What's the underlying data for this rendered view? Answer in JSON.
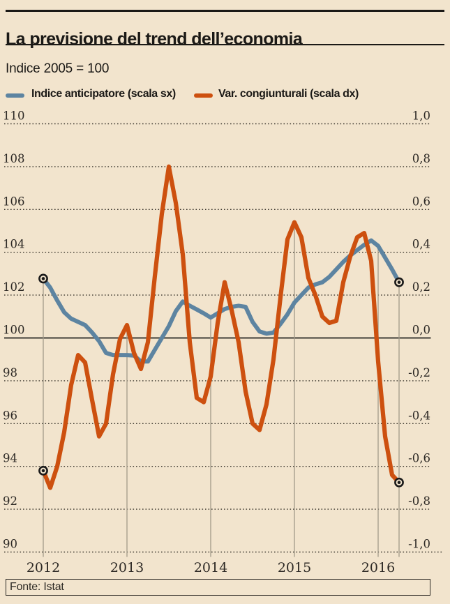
{
  "header": {
    "title": "La previsione del trend dell’economia",
    "subtitle": "Indice 2005 = 100"
  },
  "legend": [
    {
      "label": "Indice anticipatore (scala sx)",
      "color": "#5d84a1"
    },
    {
      "label": "Var. congiunturali (scala dx)",
      "color": "#cd500f"
    }
  ],
  "source": {
    "label": "Fonte: Istat"
  },
  "chart_data": {
    "type": "line",
    "title": "La previsione del trend dell’economia",
    "subtitle": "Indice 2005 = 100",
    "x_unit": "month",
    "x_start": "2012-01",
    "x_end": "2016-04",
    "x_tick_labels": [
      "2012",
      "2013",
      "2014",
      "2015",
      "2016"
    ],
    "left_axis": {
      "label": "Indice anticipatore (scala sx)",
      "range": [
        90,
        110
      ],
      "ticks": [
        "110",
        "108",
        "106",
        "104",
        "102",
        "100",
        "98",
        "96",
        "94",
        "92",
        "90"
      ]
    },
    "right_axis": {
      "label": "Var. congiunturali (scala dx)",
      "range": [
        -1.0,
        1.0
      ],
      "ticks": [
        "1,0",
        "0,8",
        "0,6",
        "0,4",
        "0,2",
        "0,0",
        "-0,2",
        "-0,4",
        "-0,6",
        "-0,8",
        "-1,0"
      ]
    },
    "grid": {
      "horizontal": "dotted",
      "zero_line": "solid",
      "vertical_year_lines": true,
      "legend_position": "top"
    },
    "endpoint_markers": true,
    "colors": {
      "background": "#f2e4cd",
      "blue_series": "#5d84a1",
      "orange_series": "#cd500f",
      "grid_dots": "#3d382f",
      "zero_line": "#55504a",
      "year_line": "#a29a89",
      "text": "#2d2925"
    },
    "series": [
      {
        "name": "Indice anticipatore (scala sx)",
        "axis": "left",
        "color": "#5d84a1",
        "values": [
          102.77,
          102.35,
          101.75,
          101.2,
          100.9,
          100.75,
          100.6,
          100.25,
          99.85,
          99.3,
          99.2,
          99.2,
          99.2,
          99.18,
          98.9,
          98.9,
          99.45,
          100.0,
          100.55,
          101.25,
          101.7,
          101.5,
          101.33,
          101.15,
          100.95,
          101.15,
          101.35,
          101.45,
          101.5,
          101.45,
          100.75,
          100.3,
          100.2,
          100.25,
          100.65,
          101.1,
          101.65,
          102.0,
          102.35,
          102.5,
          102.6,
          102.85,
          103.2,
          103.55,
          103.85,
          104.1,
          104.35,
          104.55,
          104.3,
          103.75,
          103.2,
          102.6
        ]
      },
      {
        "name": "Var. congiunturali (scala dx)",
        "axis": "right",
        "color": "#cd500f",
        "values": [
          -0.62,
          -0.7,
          -0.6,
          -0.44,
          -0.22,
          -0.08,
          -0.115,
          -0.29,
          -0.46,
          -0.4,
          -0.17,
          -0.005,
          0.06,
          -0.07,
          -0.145,
          -0.02,
          0.29,
          0.58,
          0.8,
          0.63,
          0.39,
          -0.02,
          -0.28,
          -0.3,
          -0.18,
          0.07,
          0.26,
          0.13,
          -0.02,
          -0.25,
          -0.4,
          -0.43,
          -0.31,
          -0.1,
          0.19,
          0.46,
          0.54,
          0.47,
          0.28,
          0.2,
          0.1,
          0.07,
          0.08,
          0.26,
          0.38,
          0.47,
          0.49,
          0.36,
          -0.11,
          -0.46,
          -0.64,
          -0.675
        ]
      }
    ]
  }
}
